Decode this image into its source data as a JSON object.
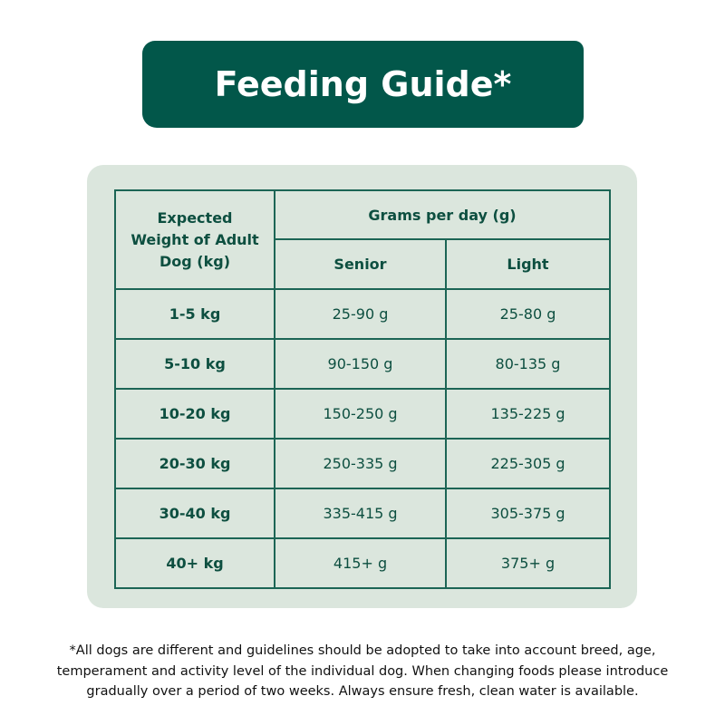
{
  "title": "Feeding Guide*",
  "table": {
    "weight_header": "Expected Weight of Adult Dog (kg)",
    "grams_header": "Grams per day (g)",
    "columns": [
      "Senior",
      "Light"
    ],
    "rows": [
      {
        "weight": "1-5 kg",
        "senior": "25-90 g",
        "light": "25-80 g"
      },
      {
        "weight": "5-10 kg",
        "senior": "90-150 g",
        "light": "80-135 g"
      },
      {
        "weight": "10-20 kg",
        "senior": "150-250 g",
        "light": "135-225 g"
      },
      {
        "weight": "20-30 kg",
        "senior": "250-335 g",
        "light": "225-305 g"
      },
      {
        "weight": "30-40 kg",
        "senior": "335-415 g",
        "light": "305-375 g"
      },
      {
        "weight": "40+ kg",
        "senior": "415+ g",
        "light": "375+ g"
      }
    ]
  },
  "footnote": "*All dogs are different and guidelines should be adopted to take into account breed, age, temperament and activity level of the individual dog. When changing foods please introduce gradually over a period of two weeks. Always ensure fresh, clean water is available.",
  "colors": {
    "brand_green": "#02574a",
    "panel_bg": "#dbe6dd"
  }
}
